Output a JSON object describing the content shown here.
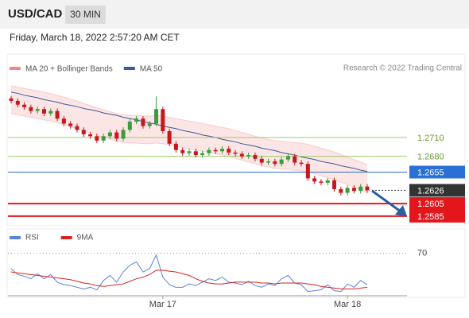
{
  "header": {
    "symbol": "USD/CAD",
    "interval": "30 MIN",
    "timestamp": "Friday, March 18, 2022 2:57:20 AM CET"
  },
  "chart_data": [
    {
      "type": "candlestick",
      "source": "Research © 2022 Trading Central",
      "categories": [
        null,
        null,
        null,
        null,
        null,
        null,
        null,
        null,
        null,
        null,
        null,
        null,
        null,
        null,
        null,
        null,
        null,
        null,
        null,
        null,
        null,
        null,
        null,
        "Mar 17",
        null,
        null,
        null,
        null,
        null,
        null,
        null,
        null,
        null,
        null,
        null,
        null,
        null,
        null,
        null,
        null,
        null,
        null,
        null,
        null,
        null,
        null,
        null,
        null,
        null,
        null,
        null,
        "Mar 18",
        null,
        null,
        null
      ],
      "open": [
        1.2772,
        1.2768,
        1.2762,
        1.2758,
        1.2752,
        1.2755,
        1.2748,
        1.2752,
        1.274,
        1.2732,
        1.2728,
        1.2722,
        1.2715,
        1.2712,
        1.2705,
        1.2712,
        1.2718,
        1.2708,
        1.2722,
        1.2735,
        1.274,
        1.2728,
        1.2732,
        1.2755,
        1.272,
        1.27,
        1.269,
        1.2685,
        1.2688,
        1.2682,
        1.2685,
        1.269,
        1.2688,
        1.2692,
        1.2686,
        1.2684,
        1.268,
        1.2682,
        1.2676,
        1.267,
        1.2672,
        1.2668,
        1.2675,
        1.268,
        1.267,
        1.2668,
        1.2645,
        1.264,
        1.2638,
        1.2642,
        1.2628,
        1.2622,
        1.263,
        1.2625,
        1.2632
      ],
      "high": [
        1.2776,
        1.2772,
        1.2766,
        1.2762,
        1.2759,
        1.2759,
        1.2756,
        1.2756,
        1.2744,
        1.2736,
        1.2732,
        1.2726,
        1.2719,
        1.2716,
        1.2716,
        1.2722,
        1.2722,
        1.2726,
        1.2739,
        1.2744,
        1.2744,
        1.2736,
        1.2775,
        1.2759,
        1.2724,
        1.2704,
        1.2694,
        1.2692,
        1.2692,
        1.2689,
        1.2694,
        1.2694,
        1.2696,
        1.2696,
        1.269,
        1.2688,
        1.2686,
        1.2686,
        1.268,
        1.2676,
        1.2676,
        1.2679,
        1.2684,
        1.2684,
        1.2674,
        1.2672,
        1.2649,
        1.2644,
        1.2646,
        1.2646,
        1.2632,
        1.2634,
        1.2634,
        1.2636,
        1.2636
      ],
      "low": [
        1.2764,
        1.2758,
        1.2754,
        1.2748,
        1.2748,
        1.2744,
        1.2744,
        1.2736,
        1.2728,
        1.2724,
        1.2718,
        1.2711,
        1.2708,
        1.2701,
        1.2701,
        1.2708,
        1.2704,
        1.2704,
        1.2718,
        1.2731,
        1.2724,
        1.2724,
        1.2728,
        1.2716,
        1.2696,
        1.2686,
        1.2681,
        1.2681,
        1.2678,
        1.2678,
        1.2681,
        1.2684,
        1.2684,
        1.2682,
        1.268,
        1.2676,
        1.2676,
        1.2672,
        1.2666,
        1.2666,
        1.2664,
        1.2664,
        1.2671,
        1.2666,
        1.2664,
        1.2641,
        1.2636,
        1.2634,
        1.2634,
        1.2624,
        1.2618,
        1.2618,
        1.2621,
        1.2621,
        1.2622
      ],
      "close": [
        1.2768,
        1.2762,
        1.2758,
        1.2752,
        1.2755,
        1.2748,
        1.2752,
        1.274,
        1.2732,
        1.2728,
        1.2722,
        1.2715,
        1.2712,
        1.2705,
        1.2712,
        1.2718,
        1.2708,
        1.2722,
        1.2735,
        1.274,
        1.2728,
        1.2732,
        1.2755,
        1.272,
        1.27,
        1.269,
        1.2685,
        1.2688,
        1.2682,
        1.2685,
        1.269,
        1.2688,
        1.2692,
        1.2686,
        1.2684,
        1.268,
        1.2682,
        1.2676,
        1.267,
        1.2672,
        1.2668,
        1.2675,
        1.268,
        1.267,
        1.2668,
        1.2645,
        1.264,
        1.2638,
        1.2642,
        1.2628,
        1.2622,
        1.263,
        1.2625,
        1.2632,
        1.2626
      ],
      "up_color": "#3d9a3d",
      "down_color": "#c8161d",
      "series": [
        {
          "name": "MA 20 + Bollinger Bands",
          "color": "#f08a8a",
          "upper": [
            1.2792,
            1.279,
            1.2788,
            1.2786,
            1.2784,
            1.2782,
            1.278,
            1.2777,
            1.2774,
            1.2771,
            1.2768,
            1.2764,
            1.2761,
            1.2757,
            1.2754,
            1.2751,
            1.2748,
            1.2746,
            1.2745,
            1.2745,
            1.2744,
            1.2744,
            1.2745,
            1.2744,
            1.2742,
            1.274,
            1.2738,
            1.2736,
            1.2734,
            1.2732,
            1.273,
            1.2728,
            1.2726,
            1.2724,
            1.2721,
            1.2718,
            1.2715,
            1.2712,
            1.2709,
            1.2707,
            1.2705,
            1.2704,
            1.2703,
            1.2702,
            1.2701,
            1.2699,
            1.2696,
            1.2693,
            1.269,
            1.2687,
            1.2683,
            1.2679,
            1.2675,
            1.2671,
            1.2667
          ],
          "lower": [
            1.2748,
            1.2746,
            1.2744,
            1.2742,
            1.274,
            1.2738,
            1.2736,
            1.2733,
            1.273,
            1.2727,
            1.2724,
            1.272,
            1.2717,
            1.2713,
            1.271,
            1.2707,
            1.2704,
            1.2702,
            1.2701,
            1.2701,
            1.27,
            1.27,
            1.2701,
            1.27,
            1.2698,
            1.2696,
            1.2694,
            1.2692,
            1.269,
            1.2688,
            1.2686,
            1.2684,
            1.2682,
            1.268,
            1.2677,
            1.2674,
            1.2671,
            1.2668,
            1.2665,
            1.2663,
            1.2661,
            1.266,
            1.2659,
            1.2658,
            1.2657,
            1.2655,
            1.2652,
            1.2649,
            1.2646,
            1.2643,
            1.2639,
            1.2635,
            1.2631,
            1.2627,
            1.2623
          ]
        },
        {
          "name": "MA 50",
          "color": "#3a5a9c",
          "values": [
            1.2782,
            1.278,
            1.2777,
            1.2775,
            1.2773,
            1.277,
            1.2768,
            1.2766,
            1.2763,
            1.2761,
            1.2759,
            1.2756,
            1.2754,
            1.2752,
            1.2749,
            1.2747,
            1.2745,
            1.2742,
            1.274,
            1.2738,
            1.2735,
            1.2733,
            1.2731,
            1.2728,
            1.2726,
            1.2724,
            1.2721,
            1.2719,
            1.2717,
            1.2714,
            1.2712,
            1.271,
            1.2707,
            1.2705,
            1.2703,
            1.27,
            1.2698,
            1.2696,
            1.2693,
            1.2691,
            1.2689,
            1.2686,
            1.2684,
            1.2682,
            1.2679,
            1.2677,
            1.2675,
            1.2672,
            1.267,
            1.2668,
            1.2665,
            1.2663,
            1.2661,
            1.2658,
            1.2656
          ]
        }
      ],
      "ylim": [
        1.2571,
        1.2802
      ],
      "levels": [
        {
          "value": 1.271,
          "label": "1.2710",
          "color": "#9acd6a",
          "boxed": false
        },
        {
          "value": 1.268,
          "label": "1.2680",
          "color": "#9acd6a",
          "boxed": false
        },
        {
          "value": 1.2655,
          "label": "1.2655",
          "color": "#2a6fd6",
          "boxed": true
        },
        {
          "value": 1.2626,
          "label": "1.2626",
          "color": "#333333",
          "boxed": true,
          "dotted": true
        },
        {
          "value": 1.2605,
          "label": "1.2605",
          "color": "#e3171b",
          "boxed": true
        },
        {
          "value": 1.2585,
          "label": "1.2585",
          "color": "#e3171b",
          "boxed": true
        }
      ]
    },
    {
      "type": "line",
      "series": [
        {
          "name": "RSI",
          "color": "#5b84d6",
          "values": [
            52,
            45,
            43,
            40,
            46,
            40,
            45,
            36,
            33,
            32,
            30,
            28,
            30,
            27,
            38,
            44,
            36,
            48,
            56,
            60,
            48,
            52,
            68,
            42,
            33,
            30,
            30,
            34,
            32,
            36,
            40,
            38,
            42,
            36,
            35,
            33,
            37,
            32,
            30,
            34,
            32,
            40,
            44,
            35,
            33,
            25,
            26,
            27,
            33,
            26,
            25,
            34,
            30,
            38,
            33
          ]
        },
        {
          "name": "9MA",
          "color": "#d9231f",
          "values": [
            48,
            47,
            46,
            45,
            44,
            43,
            42,
            41,
            40,
            39,
            37,
            35,
            34,
            32,
            31,
            32,
            33,
            34,
            37,
            40,
            42,
            45,
            50,
            50,
            49,
            48,
            46,
            44,
            40,
            37,
            35,
            34,
            34,
            35,
            36,
            36,
            36,
            36,
            35,
            35,
            34,
            35,
            35,
            35,
            35,
            34,
            33,
            31,
            30,
            29,
            28,
            28,
            28,
            29,
            30
          ]
        }
      ],
      "ylim": [
        20,
        80
      ],
      "yticks": [
        70
      ],
      "grid": true
    }
  ]
}
